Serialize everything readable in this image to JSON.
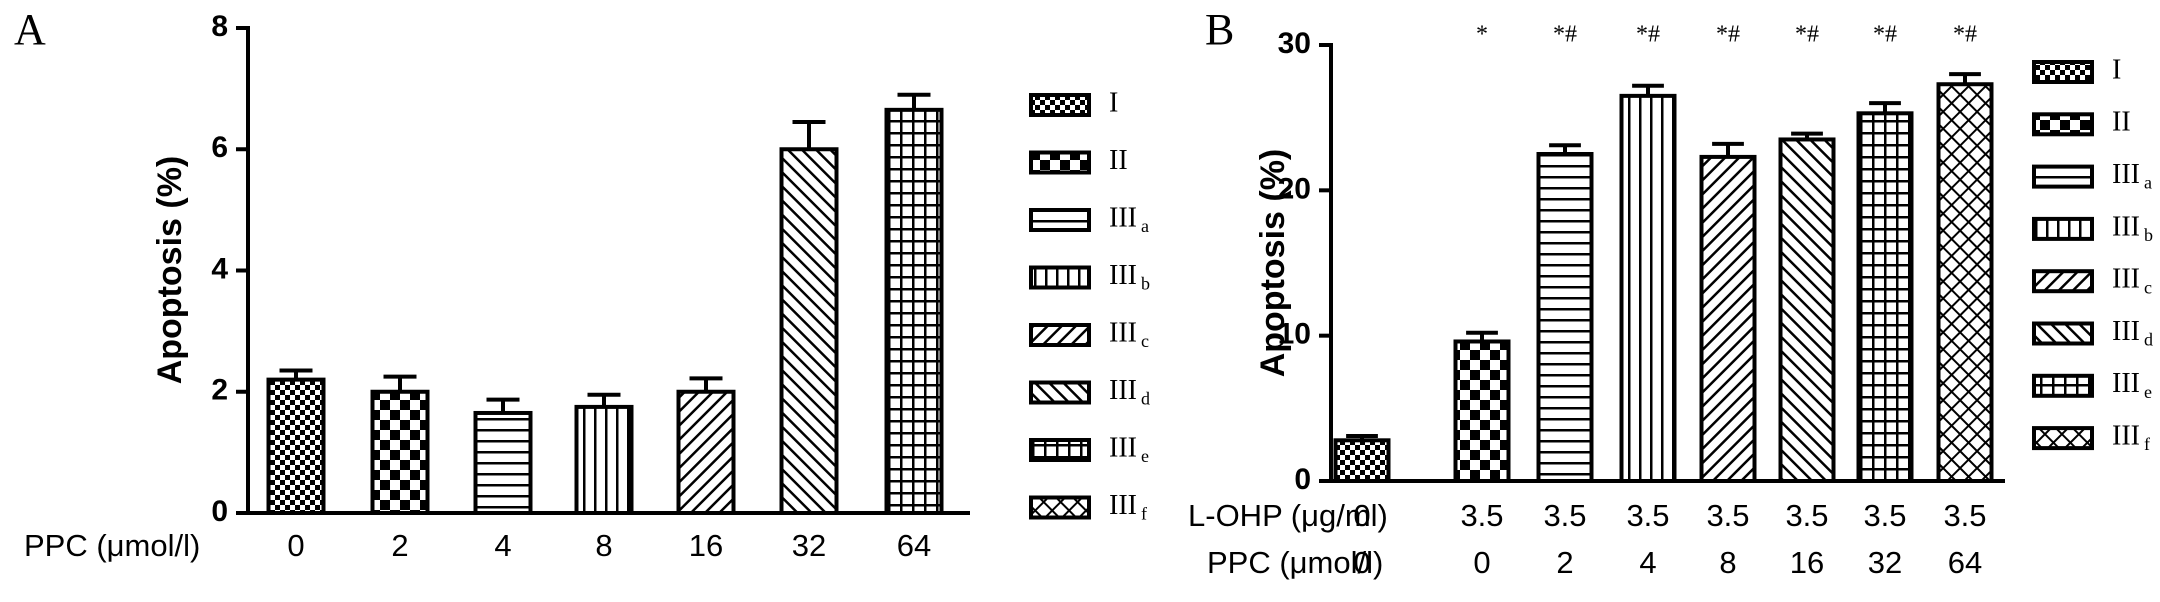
{
  "chart_data": [
    {
      "type": "bar",
      "panel_label": "A",
      "y_label": "Apoptosis  (%)",
      "category_axis_label": "PPC (μmol/l)",
      "categories": [
        "0",
        "2",
        "4",
        "8",
        "16",
        "32",
        "64"
      ],
      "values": [
        2.2,
        2.0,
        1.65,
        1.75,
        2.0,
        6.0,
        6.65
      ],
      "errors": [
        0.15,
        0.25,
        0.22,
        0.2,
        0.22,
        0.45,
        0.25
      ],
      "ylim": [
        0,
        8
      ],
      "yticks": [
        0,
        2,
        4,
        6,
        8
      ],
      "legend": [
        {
          "label": "I",
          "pattern": "checker-small"
        },
        {
          "label": "II",
          "pattern": "checker"
        },
        {
          "label": "III",
          "subscript": "a",
          "pattern": "hlines"
        },
        {
          "label": "III",
          "subscript": "b",
          "pattern": "vlines"
        },
        {
          "label": "III",
          "subscript": "c",
          "pattern": "diag-up"
        },
        {
          "label": "III",
          "subscript": "d",
          "pattern": "diag-down"
        },
        {
          "label": "III",
          "subscript": "e",
          "pattern": "grid"
        },
        {
          "label": "III",
          "subscript": "f",
          "pattern": "diag-cross"
        }
      ]
    },
    {
      "type": "bar",
      "panel_label": "B",
      "y_label": "Apoptosis (%)",
      "category_axis_label2": "L-OHP (μg/ml)",
      "categories2": [
        "0",
        "3.5",
        "3.5",
        "3.5",
        "3.5",
        "3.5",
        "3.5",
        "3.5"
      ],
      "category_axis_label": "PPC (μmol/l)",
      "categories": [
        "0",
        "0",
        "2",
        "4",
        "8",
        "16",
        "32",
        "64"
      ],
      "values": [
        2.8,
        9.6,
        22.5,
        26.5,
        22.3,
        23.5,
        25.3,
        27.3
      ],
      "errors": [
        0.3,
        0.6,
        0.6,
        0.7,
        0.9,
        0.4,
        0.7,
        0.7
      ],
      "annotations": [
        null,
        "*",
        "*#",
        "*#",
        "*#",
        "*#",
        "*#",
        "*#"
      ],
      "ylim": [
        0,
        30
      ],
      "yticks": [
        0,
        10,
        20,
        30
      ],
      "legend": [
        {
          "label": "I",
          "pattern": "checker-small"
        },
        {
          "label": "II",
          "pattern": "checker"
        },
        {
          "label": "III",
          "subscript": "a",
          "pattern": "hlines"
        },
        {
          "label": "III",
          "subscript": "b",
          "pattern": "vlines"
        },
        {
          "label": "III",
          "subscript": "c",
          "pattern": "diag-up"
        },
        {
          "label": "III",
          "subscript": "d",
          "pattern": "diag-down"
        },
        {
          "label": "III",
          "subscript": "e",
          "pattern": "grid"
        },
        {
          "label": "III",
          "subscript": "f",
          "pattern": "diag-cross"
        }
      ]
    }
  ]
}
